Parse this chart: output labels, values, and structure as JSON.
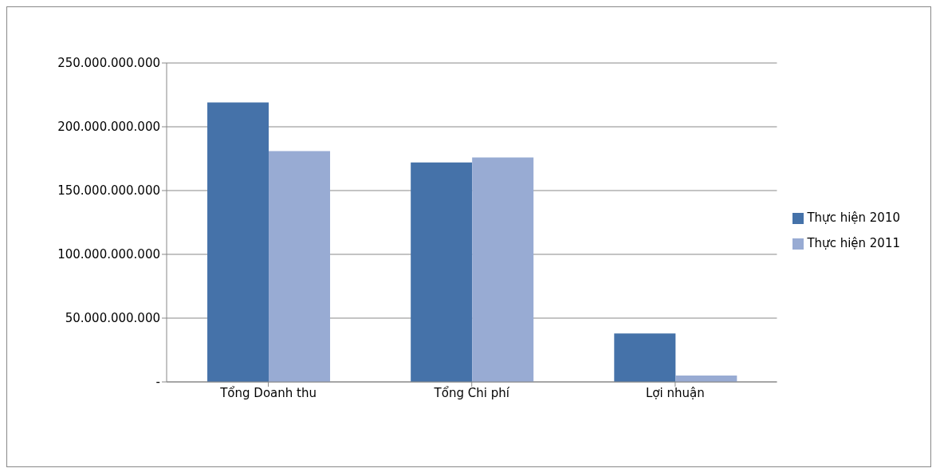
{
  "chart_data": {
    "type": "bar",
    "categories": [
      "Tổng Doanh thu",
      "Tổng Chi phí",
      "Lợi nhuận"
    ],
    "series": [
      {
        "name": "Thực hiện 2010",
        "color": "#4572a9",
        "values": [
          219000000000,
          172000000000,
          38000000000
        ]
      },
      {
        "name": "Thực hiện 2011",
        "color": "#98abd3",
        "values": [
          181000000000,
          176000000000,
          5000000000
        ]
      }
    ],
    "ylim": [
      0,
      250000000000
    ],
    "yticks": [
      {
        "value": 0,
        "label": "-"
      },
      {
        "value": 50000000000,
        "label": "50.000.000.000"
      },
      {
        "value": 100000000000,
        "label": "100.000.000.000"
      },
      {
        "value": 150000000000,
        "label": "150.000.000.000"
      },
      {
        "value": 200000000000,
        "label": "200.000.000.000"
      },
      {
        "value": 250000000000,
        "label": "250.000.000.000"
      }
    ],
    "grid": "y",
    "legend": "right"
  }
}
